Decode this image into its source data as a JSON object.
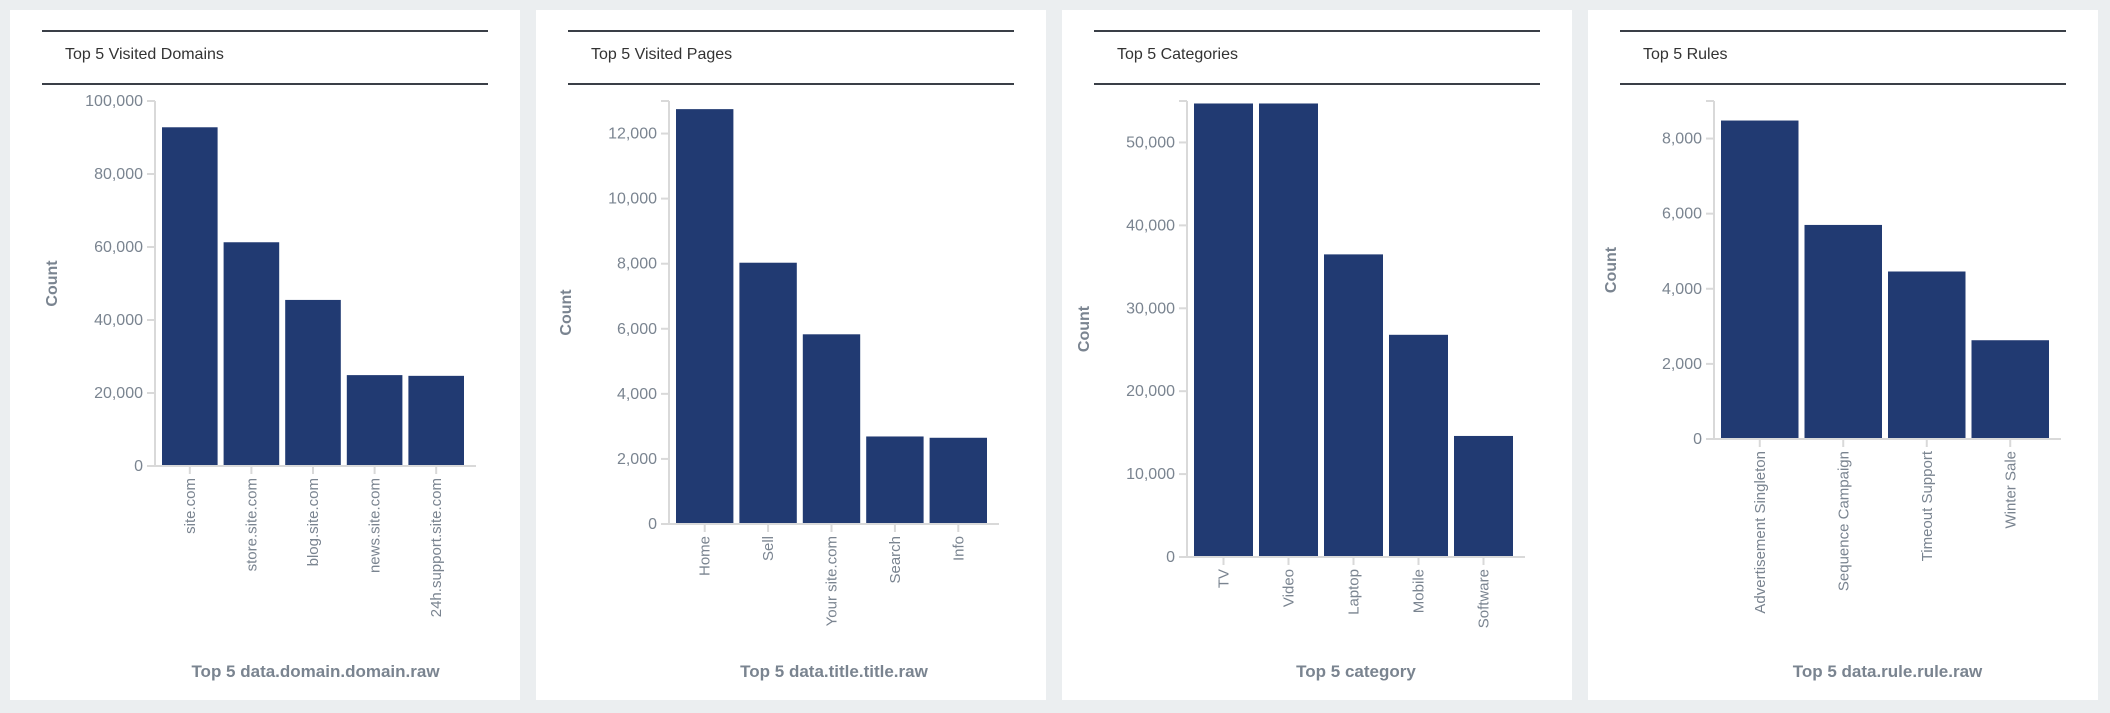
{
  "colors": {
    "bar": "#213a72",
    "axis_text": "#7a8490",
    "axis_line": "#d9d9d9",
    "background": "#ebeef0"
  },
  "panels": [
    {
      "title": "Top 5 Visited Domains"
    },
    {
      "title": "Top 5 Visited Pages"
    },
    {
      "title": "Top 5 Categories"
    },
    {
      "title": "Top 5 Rules"
    }
  ],
  "chart_data": [
    {
      "type": "bar",
      "title": "Top 5 Visited Domains",
      "categories": [
        "site.com",
        "store.site.com",
        "blog.site.com",
        "news.site.com",
        "24h.support.site.com"
      ],
      "values": [
        92800,
        61300,
        45500,
        24900,
        24700
      ],
      "xlabel": "Top 5 data.domain.domain.raw",
      "ylabel": "Count",
      "ylim": [
        0,
        100000
      ],
      "yticks": [
        0,
        20000,
        40000,
        60000,
        80000,
        100000
      ],
      "ytick_labels": [
        "0",
        "20,000",
        "40,000",
        "60,000",
        "80,000",
        "100,000"
      ],
      "grid": false
    },
    {
      "type": "bar",
      "title": "Top 5 Visited Pages",
      "categories": [
        "Home",
        "Sell",
        "Your site.com",
        "Search",
        "Info"
      ],
      "values": [
        12750,
        8030,
        5830,
        2690,
        2650
      ],
      "xlabel": "Top 5 data.title.title.raw",
      "ylabel": "Count",
      "ylim": [
        0,
        13000
      ],
      "yticks": [
        0,
        2000,
        4000,
        6000,
        8000,
        10000,
        12000
      ],
      "ytick_labels": [
        "0",
        "2,000",
        "4,000",
        "6,000",
        "8,000",
        "10,000",
        "12,000"
      ],
      "grid": false
    },
    {
      "type": "bar",
      "title": "Top 5 Categories",
      "categories": [
        "TV",
        "Video",
        "Laptop",
        "Mobile",
        "Software"
      ],
      "values": [
        54700,
        54700,
        36500,
        26800,
        14600
      ],
      "xlabel": "Top 5 category",
      "ylabel": "Count",
      "ylim": [
        0,
        55000
      ],
      "yticks": [
        0,
        10000,
        20000,
        30000,
        40000,
        50000
      ],
      "ytick_labels": [
        "0",
        "10,000",
        "20,000",
        "30,000",
        "40,000",
        "50,000"
      ],
      "grid": false
    },
    {
      "type": "bar",
      "title": "Top 5 Rules",
      "categories": [
        "Advertisement Singleton",
        "Sequence Campaign",
        "Timeout Support",
        "Winter Sale"
      ],
      "values": [
        8480,
        5700,
        4460,
        2630
      ],
      "xlabel": "Top 5 data.rule.rule.raw",
      "ylabel": "Count",
      "ylim": [
        0,
        9000
      ],
      "yticks": [
        0,
        2000,
        4000,
        6000,
        8000
      ],
      "ytick_labels": [
        "0",
        "2,000",
        "4,000",
        "6,000",
        "8,000"
      ],
      "grid": false
    }
  ]
}
